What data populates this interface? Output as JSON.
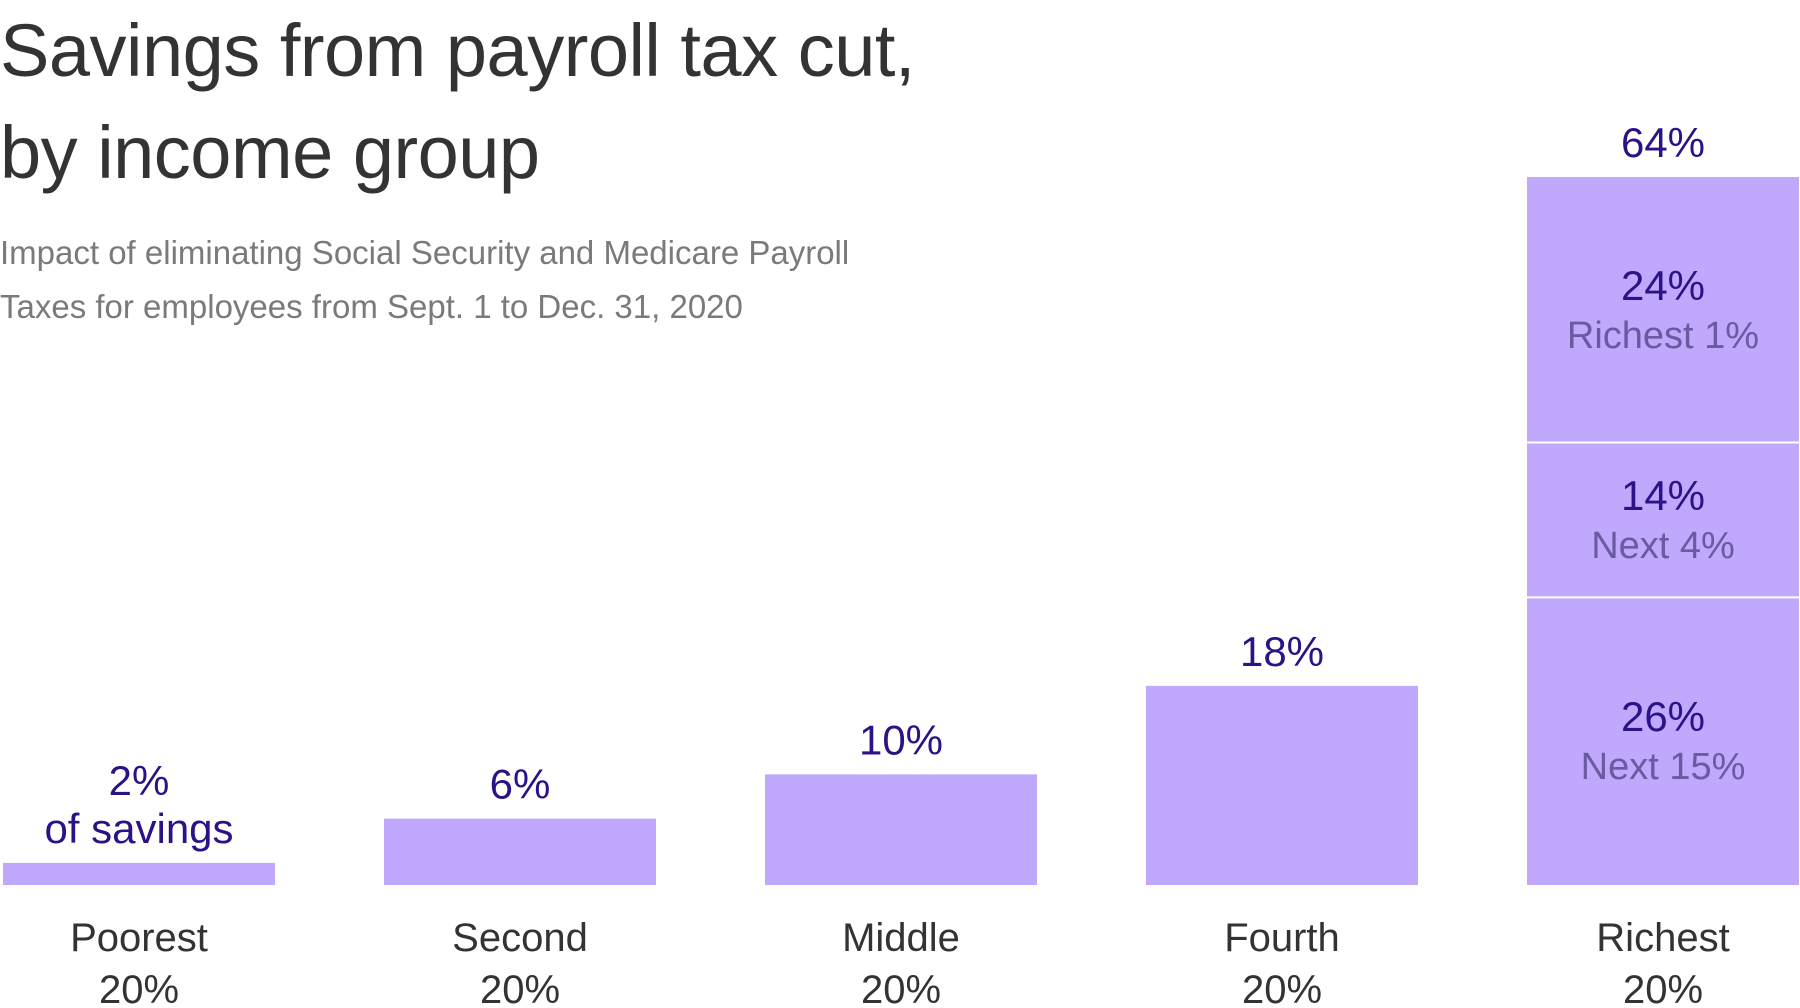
{
  "title_lines": [
    "Savings from payroll tax cut,",
    "by income group"
  ],
  "subtitle_lines": [
    "Impact of eliminating Social Security and Medicare Payroll",
    "Taxes for employees from Sept. 1 to Dec. 31, 2020"
  ],
  "colors": {
    "bar": "#c0a8fd",
    "value_text": "#2d1187",
    "segment_text": "#6a5aa0",
    "separator": "#ffffff"
  },
  "chart_data": {
    "type": "bar",
    "title": "Savings from payroll tax cut, by income group",
    "subtitle": "Impact of eliminating Social Security and Medicare Payroll Taxes for employees from Sept. 1 to Dec. 31, 2020",
    "xlabel": "",
    "ylabel": "",
    "ylim": [
      0,
      64
    ],
    "grid": false,
    "categories": [
      {
        "line1": "Poorest",
        "line2": "20%"
      },
      {
        "line1": "Second",
        "line2": "20%"
      },
      {
        "line1": "Middle",
        "line2": "20%"
      },
      {
        "line1": "Fourth",
        "line2": "20%"
      },
      {
        "line1": "Richest",
        "line2": "20%"
      }
    ],
    "values": [
      2,
      6,
      10,
      18,
      64
    ],
    "value_labels": [
      [
        "2%",
        "of savings"
      ],
      [
        "6%"
      ],
      [
        "10%"
      ],
      [
        "18%"
      ],
      [
        "64%"
      ]
    ],
    "breakdown": {
      "category_index": 4,
      "segments": [
        {
          "value": 26,
          "label": "26%",
          "name": "Next 15%"
        },
        {
          "value": 14,
          "label": "14%",
          "name": "Next 4%"
        },
        {
          "value": 24,
          "label": "24%",
          "name": "Richest 1%"
        }
      ]
    }
  }
}
